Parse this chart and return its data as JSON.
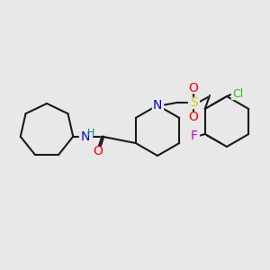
{
  "bg_color": "#e8e8e8",
  "bond_color": "#1a1a1a",
  "bond_lw": 1.5,
  "atom_colors": {
    "N": "#0000ee",
    "O": "#ff0000",
    "S": "#cccc00",
    "Cl": "#22cc00",
    "F": "#cc00cc",
    "H": "#008080"
  },
  "font_size": 9,
  "label_font_size": 8
}
